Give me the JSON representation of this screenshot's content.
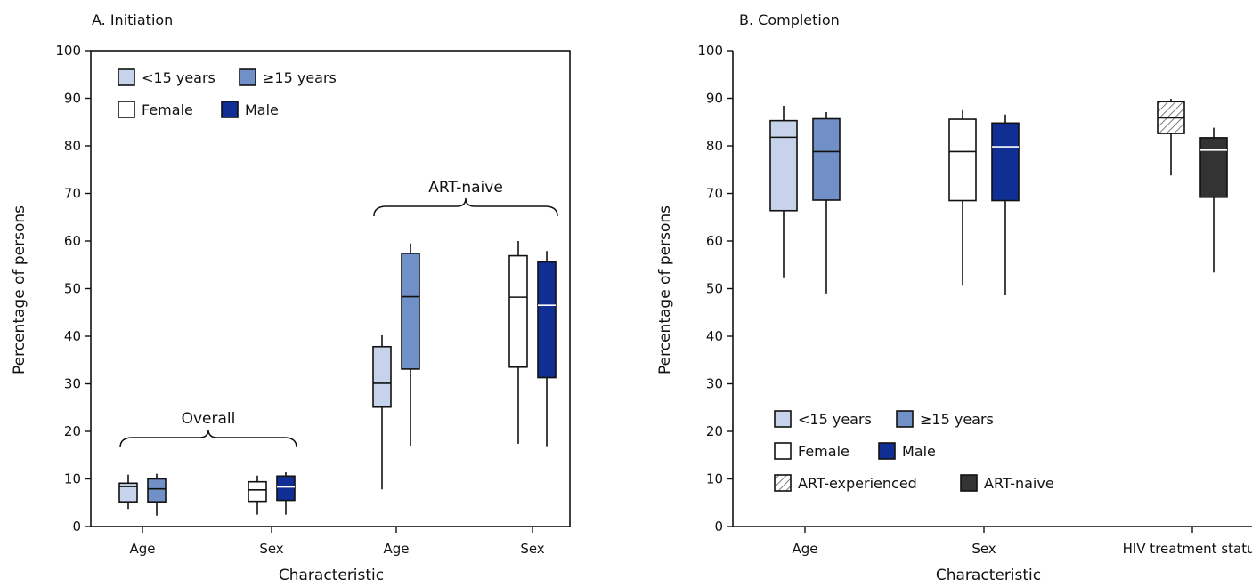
{
  "colors": {
    "lt15": "#c7d3ea",
    "ge15": "#7290c8",
    "female": "#ffffff",
    "male": "#0f2f95",
    "art_experienced": "#ffffff",
    "art_naive": "#333333",
    "outline": "#111111"
  },
  "chart_data": [
    {
      "type": "box",
      "title": "A. Initiation",
      "xlabel": "Characteristic",
      "ylabel": "Percentage of persons",
      "ylim": [
        0,
        100
      ],
      "yticks": [
        0,
        10,
        20,
        30,
        40,
        50,
        60,
        70,
        80,
        90,
        100
      ],
      "frame": true,
      "legend": [
        {
          "key": "lt15",
          "label": "<15 years"
        },
        {
          "key": "ge15",
          "label": "≥15 years"
        },
        {
          "key": "female",
          "label": "Female"
        },
        {
          "key": "male",
          "label": "Male"
        }
      ],
      "legend_placement": "top-left",
      "categories": [
        "Age",
        "Sex",
        "Age",
        "Sex"
      ],
      "groups": [
        {
          "label": "Overall",
          "categories": [
            0,
            1
          ]
        },
        {
          "label": "ART-naive",
          "categories": [
            2,
            3
          ]
        }
      ],
      "boxes": [
        {
          "category": 0,
          "series": "lt15",
          "min": 3.7,
          "q1": 5.2,
          "median": 8.4,
          "q3": 9.1,
          "max": 10.9
        },
        {
          "category": 0,
          "series": "ge15",
          "min": 2.3,
          "q1": 5.2,
          "median": 7.9,
          "q3": 10.0,
          "max": 11.1
        },
        {
          "category": 1,
          "series": "female",
          "min": 2.5,
          "q1": 5.3,
          "median": 7.7,
          "q3": 9.4,
          "max": 10.7
        },
        {
          "category": 1,
          "series": "male",
          "min": 2.5,
          "q1": 5.5,
          "median": 8.3,
          "q3": 10.6,
          "max": 11.4
        },
        {
          "category": 2,
          "series": "lt15",
          "min": 7.8,
          "q1": 25.1,
          "median": 30.1,
          "q3": 37.8,
          "max": 40.2
        },
        {
          "category": 2,
          "series": "ge15",
          "min": 17.0,
          "q1": 33.1,
          "median": 48.3,
          "q3": 57.4,
          "max": 59.5
        },
        {
          "category": 3,
          "series": "female",
          "min": 17.4,
          "q1": 33.5,
          "median": 48.2,
          "q3": 56.9,
          "max": 60.0
        },
        {
          "category": 3,
          "series": "male",
          "min": 16.7,
          "q1": 31.3,
          "median": 46.5,
          "q3": 55.6,
          "max": 57.9
        }
      ]
    },
    {
      "type": "box",
      "title": "B. Completion",
      "xlabel": "Characteristic",
      "ylabel": "Percentage of persons",
      "ylim": [
        0,
        100
      ],
      "yticks": [
        0,
        10,
        20,
        30,
        40,
        50,
        60,
        70,
        80,
        90,
        100
      ],
      "frame": false,
      "legend": [
        {
          "key": "lt15",
          "label": "<15 years"
        },
        {
          "key": "ge15",
          "label": "≥15 years"
        },
        {
          "key": "female",
          "label": "Female"
        },
        {
          "key": "male",
          "label": "Male"
        },
        {
          "key": "art_experienced",
          "label": "ART-experienced"
        },
        {
          "key": "art_naive",
          "label": "ART-naive"
        }
      ],
      "legend_placement": "bottom-left",
      "categories": [
        "Age",
        "Sex",
        "HIV treatment status"
      ],
      "boxes": [
        {
          "category": 0,
          "series": "lt15",
          "min": 52.2,
          "q1": 66.4,
          "median": 81.8,
          "q3": 85.3,
          "max": 88.4
        },
        {
          "category": 0,
          "series": "ge15",
          "min": 49.0,
          "q1": 68.6,
          "median": 78.8,
          "q3": 85.7,
          "max": 87.1
        },
        {
          "category": 1,
          "series": "female",
          "min": 50.6,
          "q1": 68.5,
          "median": 78.8,
          "q3": 85.6,
          "max": 87.5
        },
        {
          "category": 1,
          "series": "male",
          "min": 48.6,
          "q1": 68.5,
          "median": 79.8,
          "q3": 84.8,
          "max": 86.6
        },
        {
          "category": 2,
          "series": "art_experienced",
          "min": 73.8,
          "q1": 82.6,
          "median": 85.9,
          "q3": 89.3,
          "max": 89.9
        },
        {
          "category": 2,
          "series": "art_naive",
          "min": 53.4,
          "q1": 69.2,
          "median": 79.1,
          "q3": 81.7,
          "max": 83.8
        }
      ]
    }
  ]
}
